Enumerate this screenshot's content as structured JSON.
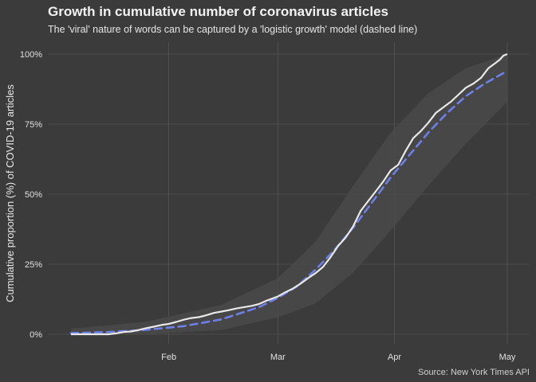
{
  "chart_data": {
    "type": "line",
    "title": "Growth in cumulative number of coronavirus articles",
    "subtitle": "The 'viral' nature of words can be captured by a 'logistic growth' model (dashed line)",
    "xlabel": "",
    "ylabel": "Cumulative proportion (%) of COVID-19 articles",
    "caption": "Source: New York Times API",
    "x_axis": {
      "type": "date",
      "range": [
        "2020-01-06",
        "2020-05-01"
      ],
      "ticks": [
        {
          "date": "2020-02-01",
          "label": "Feb"
        },
        {
          "date": "2020-03-01",
          "label": "Mar"
        },
        {
          "date": "2020-04-01",
          "label": "Apr"
        },
        {
          "date": "2020-05-01",
          "label": "May"
        }
      ]
    },
    "y_axis": {
      "ylim": [
        0,
        100
      ],
      "ticks": [
        {
          "value": 0,
          "label": "0%"
        },
        {
          "value": 25,
          "label": "25%"
        },
        {
          "value": 50,
          "label": "50%"
        },
        {
          "value": 75,
          "label": "75%"
        },
        {
          "value": 100,
          "label": "100%"
        }
      ]
    },
    "grid": true,
    "colors": {
      "background": "#3b3b3b",
      "gridline": "#555555",
      "observed": "#e8e8e8",
      "fitted": "#6f7fe8",
      "band": "#4a4a4a"
    },
    "series": [
      {
        "style": "solid",
        "points": [
          [
            "2020-01-06",
            0
          ],
          [
            "2020-01-12",
            0
          ],
          [
            "2020-01-16",
            0
          ],
          [
            "2020-01-18",
            0.3
          ],
          [
            "2020-01-20",
            0.8
          ],
          [
            "2020-01-22",
            1.0
          ],
          [
            "2020-01-24",
            1.5
          ],
          [
            "2020-01-26",
            2.2
          ],
          [
            "2020-01-28",
            2.7
          ],
          [
            "2020-01-30",
            3.3
          ],
          [
            "2020-02-01",
            3.7
          ],
          [
            "2020-02-03",
            4.4
          ],
          [
            "2020-02-05",
            5.2
          ],
          [
            "2020-02-07",
            5.8
          ],
          [
            "2020-02-09",
            6.1
          ],
          [
            "2020-02-11",
            6.8
          ],
          [
            "2020-02-13",
            7.6
          ],
          [
            "2020-02-15",
            8.1
          ],
          [
            "2020-02-17",
            8.6
          ],
          [
            "2020-02-19",
            9.2
          ],
          [
            "2020-02-21",
            9.7
          ],
          [
            "2020-02-23",
            10.1
          ],
          [
            "2020-02-25",
            10.8
          ],
          [
            "2020-02-27",
            12.0
          ],
          [
            "2020-03-01",
            13.5
          ],
          [
            "2020-03-03",
            15.0
          ],
          [
            "2020-03-05",
            16.3
          ],
          [
            "2020-03-07",
            18.0
          ],
          [
            "2020-03-09",
            20.0
          ],
          [
            "2020-03-11",
            21.8
          ],
          [
            "2020-03-13",
            24.0
          ],
          [
            "2020-03-15",
            27.5
          ],
          [
            "2020-03-17",
            31.5
          ],
          [
            "2020-03-19",
            34.5
          ],
          [
            "2020-03-21",
            38.5
          ],
          [
            "2020-03-23",
            44.0
          ],
          [
            "2020-03-25",
            47.5
          ],
          [
            "2020-03-27",
            51.0
          ],
          [
            "2020-03-29",
            54.5
          ],
          [
            "2020-03-31",
            58.5
          ],
          [
            "2020-04-02",
            60.5
          ],
          [
            "2020-04-04",
            65.5
          ],
          [
            "2020-04-06",
            70.0
          ],
          [
            "2020-04-08",
            72.5
          ],
          [
            "2020-04-10",
            75.5
          ],
          [
            "2020-04-12",
            79.0
          ],
          [
            "2020-04-14",
            81.0
          ],
          [
            "2020-04-16",
            83.0
          ],
          [
            "2020-04-18",
            85.5
          ],
          [
            "2020-04-20",
            88.0
          ],
          [
            "2020-04-22",
            89.5
          ],
          [
            "2020-04-24",
            91.5
          ],
          [
            "2020-04-26",
            95.0
          ],
          [
            "2020-04-28",
            97.0
          ],
          [
            "2020-04-29",
            98.0
          ],
          [
            "2020-04-30",
            99.5
          ],
          [
            "2020-05-01",
            100
          ]
        ]
      },
      {
        "style": "dashed",
        "points": [
          [
            "2020-01-06",
            0.4
          ],
          [
            "2020-01-16",
            0.8
          ],
          [
            "2020-01-26",
            1.6
          ],
          [
            "2020-02-05",
            2.9
          ],
          [
            "2020-02-15",
            5.3
          ],
          [
            "2020-02-25",
            9.7
          ],
          [
            "2020-03-01",
            13.0
          ],
          [
            "2020-03-06",
            17.0
          ],
          [
            "2020-03-11",
            23.0
          ],
          [
            "2020-03-16",
            30.0
          ],
          [
            "2020-03-21",
            38.0
          ],
          [
            "2020-03-26",
            47.0
          ],
          [
            "2020-03-31",
            56.0
          ],
          [
            "2020-04-05",
            64.0
          ],
          [
            "2020-04-10",
            72.0
          ],
          [
            "2020-04-15",
            79.0
          ],
          [
            "2020-04-20",
            85.0
          ],
          [
            "2020-04-25",
            89.5
          ],
          [
            "2020-05-01",
            94.0
          ]
        ]
      },
      {
        "style": "band",
        "points": [
          [
            "2020-01-06",
            0,
            2
          ],
          [
            "2020-01-26",
            0,
            4.5
          ],
          [
            "2020-02-15",
            1.5,
            10.5
          ],
          [
            "2020-03-01",
            6,
            20
          ],
          [
            "2020-03-11",
            11,
            33
          ],
          [
            "2020-03-21",
            22,
            53
          ],
          [
            "2020-03-31",
            37,
            72
          ],
          [
            "2020-04-10",
            53,
            86
          ],
          [
            "2020-04-20",
            68,
            95
          ],
          [
            "2020-05-01",
            83,
            100
          ]
        ]
      }
    ]
  }
}
